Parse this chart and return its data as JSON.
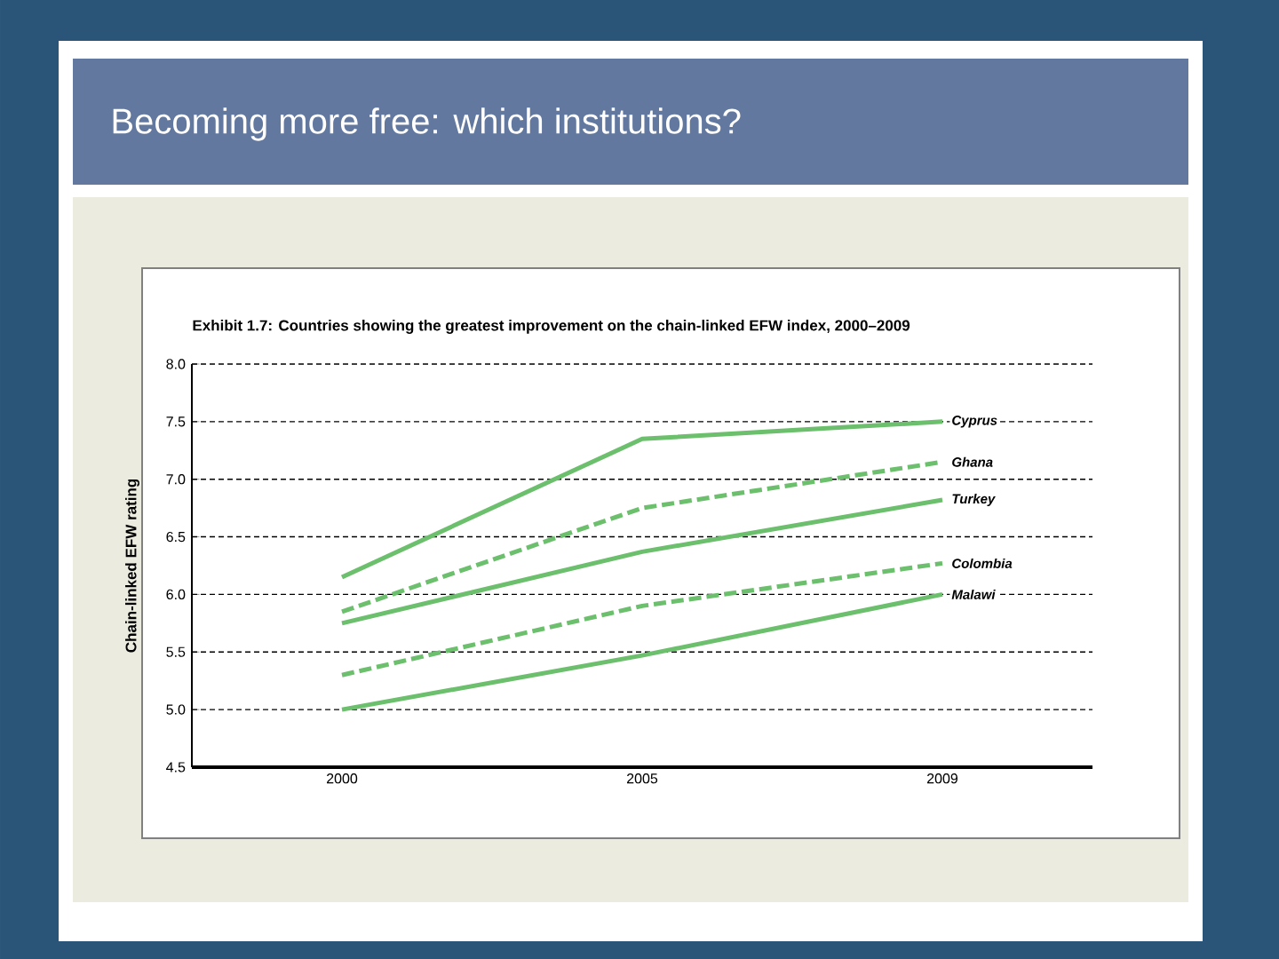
{
  "chart_data": {
    "type": "line",
    "title": "Becoming more free:  which institutions?",
    "subtitle": "Exhibit 1.7: Countries showing the greatest improvement on the chain-linked EFW index, 2000–2009",
    "ylabel": "Chain-linked EFW rating",
    "categories": [
      "2000",
      "2005",
      "2009"
    ],
    "series": [
      {
        "name": "Cyprus",
        "color": "#6cbf6c",
        "line_style": "solid",
        "values": [
          6.15,
          7.35,
          7.5
        ]
      },
      {
        "name": "Ghana",
        "color": "#6cbf6c",
        "line_style": "dashed",
        "values": [
          5.85,
          6.75,
          7.15
        ]
      },
      {
        "name": "Turkey",
        "color": "#6cbf6c",
        "line_style": "solid",
        "values": [
          5.75,
          6.37,
          6.82
        ]
      },
      {
        "name": "Colombia",
        "color": "#6cbf6c",
        "line_style": "dashed",
        "values": [
          5.3,
          5.9,
          6.27
        ]
      },
      {
        "name": "Malawi",
        "color": "#6cbf6c",
        "line_style": "solid",
        "values": [
          5.0,
          5.47,
          6.0
        ]
      }
    ],
    "ylim": [
      4.5,
      8.0
    ],
    "yticks": [
      {
        "value": 4.5,
        "label": "4.5"
      },
      {
        "value": 5,
        "label": "5.0"
      },
      {
        "value": 5.5,
        "label": "5.5"
      },
      {
        "value": 6,
        "label": "6.0"
      },
      {
        "value": 6.5,
        "label": "6.5"
      },
      {
        "value": 7,
        "label": "7.0"
      },
      {
        "value": 7.5,
        "label": "7.5"
      },
      {
        "value": 8,
        "label": "8.0"
      }
    ],
    "grid": "y"
  }
}
